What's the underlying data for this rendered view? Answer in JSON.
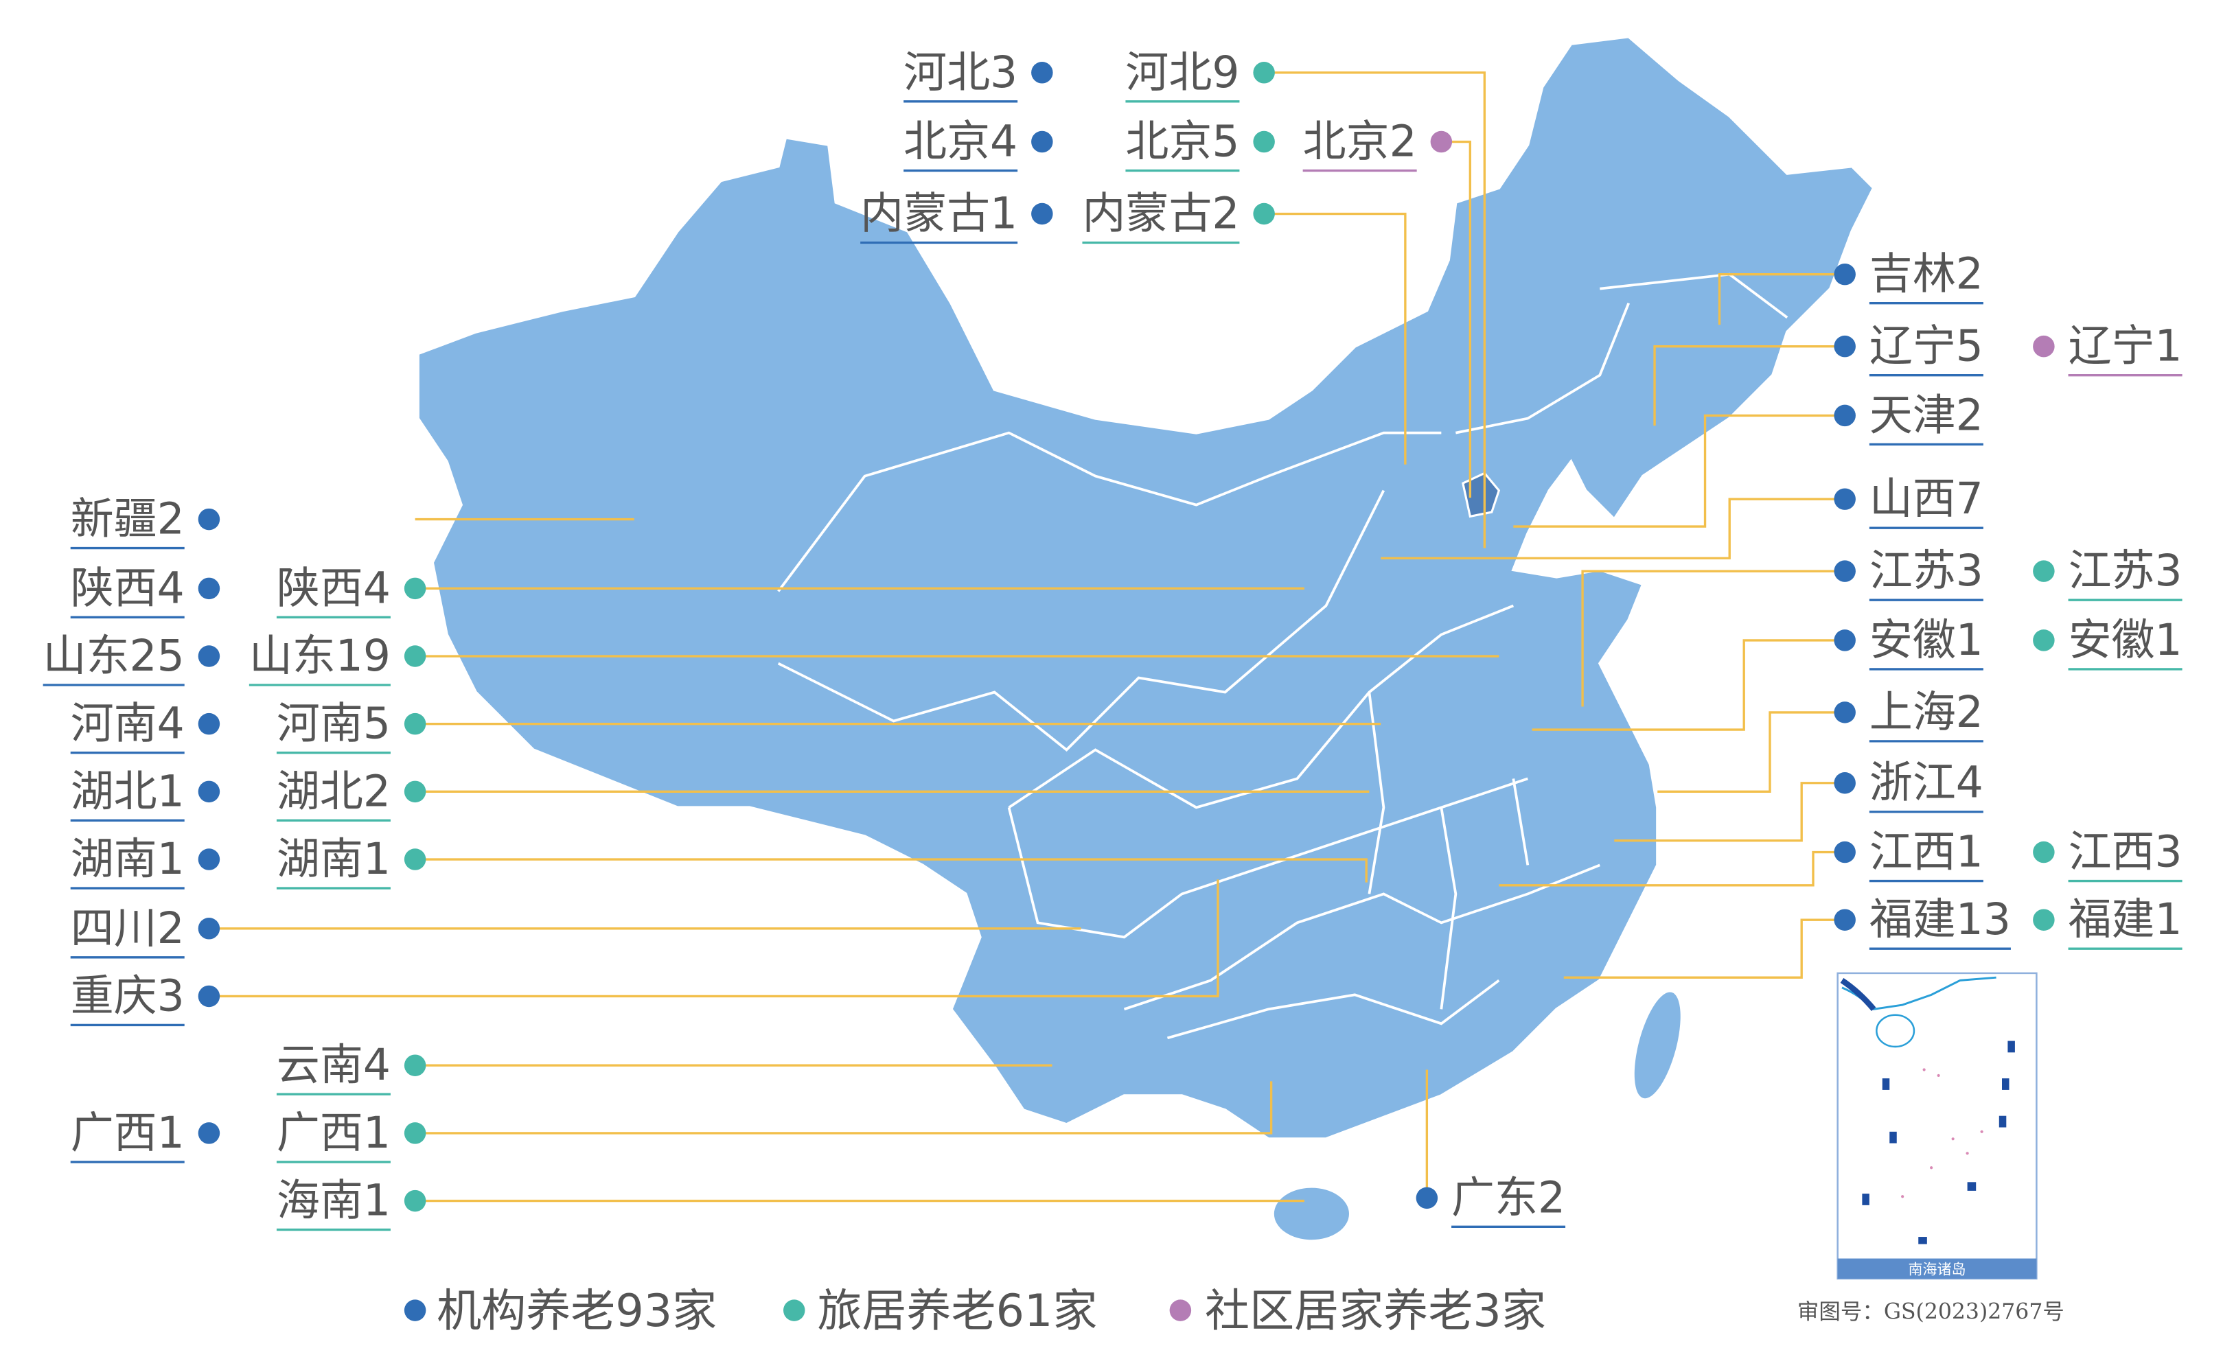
{
  "colors": {
    "institutional": "#2f6db5",
    "travel": "#46b8a8",
    "community": "#b47db5",
    "map_fill": "#84b6e4",
    "map_border": "#ffffff",
    "leader_line": "#f2bf4b",
    "inset_band": "#5b8ccb"
  },
  "labels": [
    {
      "text": "河北3",
      "category": "institutional"
    },
    {
      "text": "北京4",
      "category": "institutional"
    },
    {
      "text": "内蒙古1",
      "category": "institutional"
    },
    {
      "text": "河北9",
      "category": "travel"
    },
    {
      "text": "北京5",
      "category": "travel"
    },
    {
      "text": "内蒙古2",
      "category": "travel"
    },
    {
      "text": "北京2",
      "category": "community"
    },
    {
      "text": "吉林2",
      "category": "institutional"
    },
    {
      "text": "辽宁5",
      "category": "institutional"
    },
    {
      "text": "辽宁1",
      "category": "community"
    },
    {
      "text": "天津2",
      "category": "institutional"
    },
    {
      "text": "山西7",
      "category": "institutional"
    },
    {
      "text": "江苏3",
      "category": "institutional"
    },
    {
      "text": "江苏3",
      "category": "travel"
    },
    {
      "text": "安徽1",
      "category": "institutional"
    },
    {
      "text": "安徽1",
      "category": "travel"
    },
    {
      "text": "上海2",
      "category": "institutional"
    },
    {
      "text": "浙江4",
      "category": "institutional"
    },
    {
      "text": "江西1",
      "category": "institutional"
    },
    {
      "text": "江西3",
      "category": "travel"
    },
    {
      "text": "福建13",
      "category": "institutional"
    },
    {
      "text": "福建1",
      "category": "travel"
    },
    {
      "text": "新疆2",
      "category": "institutional"
    },
    {
      "text": "陕西4",
      "category": "institutional"
    },
    {
      "text": "陕西4",
      "category": "travel"
    },
    {
      "text": "山东25",
      "category": "institutional"
    },
    {
      "text": "山东19",
      "category": "travel"
    },
    {
      "text": "河南4",
      "category": "institutional"
    },
    {
      "text": "河南5",
      "category": "travel"
    },
    {
      "text": "湖北1",
      "category": "institutional"
    },
    {
      "text": "湖北2",
      "category": "travel"
    },
    {
      "text": "湖南1",
      "category": "institutional"
    },
    {
      "text": "湖南1",
      "category": "travel"
    },
    {
      "text": "四川2",
      "category": "institutional"
    },
    {
      "text": "重庆3",
      "category": "institutional"
    },
    {
      "text": "云南4",
      "category": "travel"
    },
    {
      "text": "广西1",
      "category": "institutional"
    },
    {
      "text": "广西1",
      "category": "travel"
    },
    {
      "text": "海南1",
      "category": "travel"
    },
    {
      "text": "广东2",
      "category": "institutional"
    }
  ],
  "legend": [
    {
      "text": "机构养老93家",
      "category": "institutional"
    },
    {
      "text": "旅居养老61家",
      "category": "travel"
    },
    {
      "text": "社区居家养老3家",
      "category": "community"
    }
  ],
  "inset": {
    "title": "南海诸岛"
  },
  "approval_number": "审图号：GS(2023)2767号"
}
